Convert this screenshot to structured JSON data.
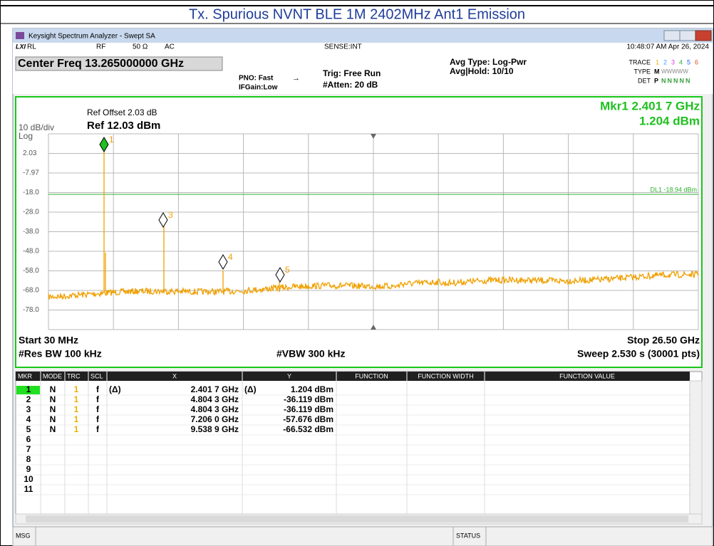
{
  "page_title": "Tx. Spurious NVNT BLE 1M 2402MHz Ant1 Emission",
  "window": {
    "logo": "LXI",
    "title": "Keysight Spectrum Analyzer - Swept SA"
  },
  "status_bar": {
    "rl": "RL",
    "rf": "RF",
    "impedance": "50 Ω",
    "coupling": "AC",
    "sense": "SENSE:INT",
    "datetime": "10:48:07 AM Apr 26, 2024"
  },
  "settings": {
    "center_freq": "Center Freq 13.265000000 GHz",
    "pno": "PNO: Fast",
    "ifgain": "IFGain:Low",
    "trig": "Trig: Free Run",
    "atten": "#Atten: 20 dB",
    "avg_type": "Avg Type: Log-Pwr",
    "avg_hold": "Avg|Hold: 10/10",
    "trace_label": "TRACE",
    "trace_numbers": [
      "1",
      "2",
      "3",
      "4",
      "5",
      "6"
    ],
    "type_label": "TYPE",
    "type_values": [
      "M",
      "WWWWW"
    ],
    "det_label": "DET",
    "det_values": [
      "P",
      "NNNNN"
    ]
  },
  "plot": {
    "ref_offset": "Ref Offset 2.03 dB",
    "ref_level": "Ref 12.03 dBm",
    "scale": "10 dB/div",
    "scale_type": "Log",
    "marker_freq": "Mkr1 2.401 7 GHz",
    "marker_level": "1.204 dBm",
    "y_labels": [
      "2.03",
      "-7.97",
      "-18.0",
      "-28.0",
      "-38.0",
      "-48.0",
      "-58.0",
      "-68.0",
      "-78.0"
    ],
    "display_line": "DL1 -18.94 dBm",
    "markers": [
      "1",
      "3",
      "4",
      "5"
    ],
    "start": "Start 30 MHz",
    "stop": "Stop 26.50 GHz",
    "rbw": "#Res BW 100 kHz",
    "vbw": "#VBW 300 kHz",
    "sweep": "Sweep  2.530 s (30001 pts)"
  },
  "marker_table": {
    "headers": [
      "MKR",
      "MODE",
      "TRC",
      "SCL",
      "X",
      "Y",
      "FUNCTION",
      "FUNCTION WIDTH",
      "FUNCTION VALUE"
    ],
    "rows": [
      [
        "1",
        "N",
        "1",
        "f",
        "(Δ)",
        "2.401 7 GHz",
        "(Δ)",
        "1.204 dBm"
      ],
      [
        "2",
        "N",
        "1",
        "f",
        "",
        "4.804 3 GHz",
        "",
        "-36.119 dBm"
      ],
      [
        "3",
        "N",
        "1",
        "f",
        "",
        "4.804 3 GHz",
        "",
        "-36.119 dBm"
      ],
      [
        "4",
        "N",
        "1",
        "f",
        "",
        "7.206 0 GHz",
        "",
        "-57.676 dBm"
      ],
      [
        "5",
        "N",
        "1",
        "f",
        "",
        "9.538 9 GHz",
        "",
        "-66.532 dBm"
      ],
      [
        "6"
      ],
      [
        "7"
      ],
      [
        "8"
      ],
      [
        "9"
      ],
      [
        "10"
      ],
      [
        "11"
      ]
    ]
  },
  "footer": {
    "msg": "MSG",
    "status": "STATUS"
  }
}
